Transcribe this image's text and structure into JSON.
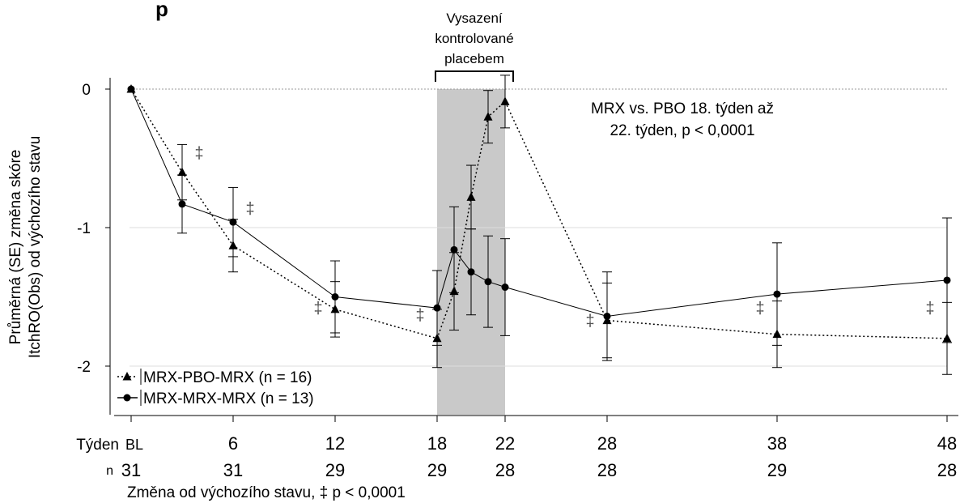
{
  "chart_data": {
    "type": "line",
    "title_fragment": "p",
    "ylabel_line1": "Průměrná (SE) změna skóre",
    "ylabel_line2": "ItchRO(Obs) od výchozího stavu",
    "xlabel": "Změna od výchozího stavu, ‡ p < 0,0001",
    "ylim": [
      -2.35,
      0.12
    ],
    "yticks": [
      0,
      -1,
      -2
    ],
    "ytick_labels": [
      "0",
      "-1",
      "-2"
    ],
    "xlim": [
      0,
      48
    ],
    "xticks": [
      0,
      6,
      12,
      18,
      22,
      28,
      38,
      48
    ],
    "week_row_label": "Týden",
    "week_labels": [
      "BL",
      "6",
      "12",
      "18",
      "22",
      "28",
      "38",
      "48"
    ],
    "n_row_label": "n",
    "n_values": [
      "31",
      "31",
      "29",
      "29",
      "28",
      "28",
      "29",
      "28"
    ],
    "shaded_region": {
      "x": [
        18,
        22
      ],
      "label_lines": [
        "Vysazení",
        "kontrolované",
        "placebem"
      ]
    },
    "reference_line_y": 0,
    "annotation_lines": [
      "MRX vs. PBO 18. týden až",
      "22. týden, p < 0,0001"
    ],
    "significance_marks": [
      {
        "text": "‡",
        "x": 4,
        "y": -0.5
      },
      {
        "text": "‡",
        "x": 7,
        "y": -0.9
      },
      {
        "text": "‡",
        "x": 11,
        "y": -1.62
      },
      {
        "text": "‡",
        "x": 17,
        "y": -1.67
      },
      {
        "text": "‡",
        "x": 27,
        "y": -1.71
      },
      {
        "text": "‡",
        "x": 37,
        "y": -1.62
      },
      {
        "text": "‡",
        "x": 47,
        "y": -1.62
      }
    ],
    "series": [
      {
        "name": "MRX-PBO-MRX (n = 16)",
        "marker": "triangle",
        "line_style": "dotted",
        "x": [
          0,
          3,
          6,
          12,
          18,
          19,
          20,
          21,
          22,
          28,
          38,
          48
        ],
        "y": [
          0,
          -0.6,
          -1.13,
          -1.59,
          -1.8,
          -1.46,
          -0.78,
          -0.2,
          -0.09,
          -1.67,
          -1.77,
          -1.8
        ],
        "se": [
          0,
          0.2,
          0.19,
          0.2,
          0.21,
          0.28,
          0.23,
          0.19,
          0.19,
          0.27,
          0.24,
          0.26
        ]
      },
      {
        "name": "MRX-MRX-MRX (n = 13)",
        "marker": "circle",
        "line_style": "solid",
        "x": [
          0,
          3,
          6,
          12,
          18,
          19,
          20,
          21,
          22,
          28,
          38,
          48
        ],
        "y": [
          0,
          -0.83,
          -0.96,
          -1.5,
          -1.58,
          -1.16,
          -1.32,
          -1.39,
          -1.43,
          -1.64,
          -1.48,
          -1.38
        ],
        "se": [
          0,
          0.21,
          0.25,
          0.26,
          0.27,
          0.31,
          0.31,
          0.33,
          0.35,
          0.32,
          0.37,
          0.45
        ]
      }
    ]
  }
}
